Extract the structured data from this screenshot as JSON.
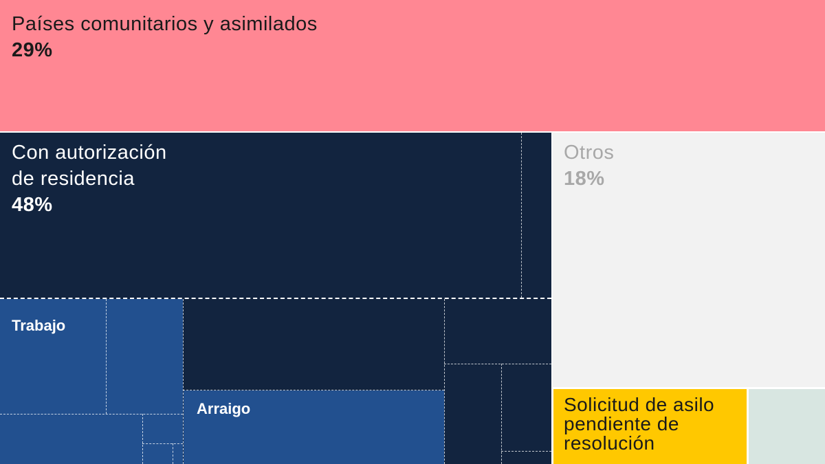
{
  "chart_data": {
    "type": "treemap",
    "nodes": [
      {
        "label": "Países comunitarios y asimilados",
        "percent": "29%",
        "color": "#ff8793"
      },
      {
        "label": "Con autorización de residencia",
        "percent": "48%",
        "color": "#12243f",
        "children": [
          {
            "label": "Trabajo",
            "color": "#22508f"
          },
          {
            "label": "Arraigo",
            "color": "#22508f"
          }
        ]
      },
      {
        "label": "Otros",
        "percent": "18%",
        "color": "#f2f2f2"
      },
      {
        "label": "Solicitud de asilo pendiente de resolución",
        "color": "#ffc800"
      },
      {
        "label": "",
        "color": "#d8e6e1"
      }
    ]
  },
  "labels": {
    "comunitarios": "Países comunitarios y asimilados",
    "comunitarios_pct": "29%",
    "residencia_l1": "Con autorización",
    "residencia_l2": "de residencia",
    "residencia_pct": "48%",
    "otros": "Otros",
    "otros_pct": "18%",
    "trabajo": "Trabajo",
    "arraigo": "Arraigo",
    "asilo_l1": "Solicitud de asilo",
    "asilo_l2": "pendiente de",
    "asilo_l3": "resolución"
  }
}
